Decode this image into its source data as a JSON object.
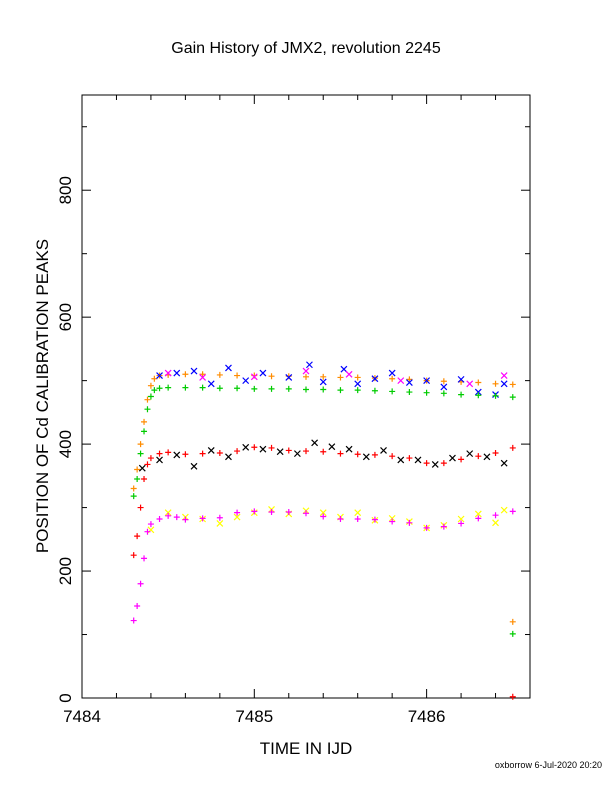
{
  "chart_data": {
    "type": "scatter",
    "title": "Gain History of JMX2, revolution 2245",
    "xlabel": "TIME IN IJD",
    "ylabel": "POSITION OF Cd CALIBRATION PEAKS",
    "xlim": [
      7484.0,
      7486.6
    ],
    "ylim": [
      0,
      950
    ],
    "xticks": [
      7484,
      7485,
      7486
    ],
    "yticks": [
      0,
      200,
      400,
      600,
      800
    ],
    "grid": false,
    "legend": "none",
    "series": [
      {
        "color": "#ff8c00",
        "marker": "+",
        "points": [
          [
            7484.3,
            330
          ],
          [
            7484.32,
            360
          ],
          [
            7484.34,
            400
          ],
          [
            7484.36,
            435
          ],
          [
            7484.38,
            470
          ],
          [
            7484.4,
            492
          ],
          [
            7484.42,
            503
          ],
          [
            7484.45,
            508
          ],
          [
            7484.5,
            509
          ],
          [
            7484.6,
            510
          ],
          [
            7484.7,
            510
          ],
          [
            7484.8,
            509
          ],
          [
            7484.9,
            508
          ],
          [
            7485.0,
            508
          ],
          [
            7485.1,
            507
          ],
          [
            7485.2,
            507
          ],
          [
            7485.3,
            506
          ],
          [
            7485.4,
            506
          ],
          [
            7485.5,
            505
          ],
          [
            7485.6,
            505
          ],
          [
            7485.7,
            504
          ],
          [
            7485.8,
            503
          ],
          [
            7485.9,
            502
          ],
          [
            7486.0,
            500
          ],
          [
            7486.1,
            499
          ],
          [
            7486.2,
            498
          ],
          [
            7486.3,
            497
          ],
          [
            7486.4,
            495
          ],
          [
            7486.5,
            494
          ],
          [
            7486.5,
            120
          ]
        ]
      },
      {
        "color": "#0000ff",
        "marker": "x",
        "points": [
          [
            7484.45,
            508
          ],
          [
            7484.55,
            512
          ],
          [
            7484.65,
            515
          ],
          [
            7484.75,
            495
          ],
          [
            7484.85,
            520
          ],
          [
            7484.95,
            500
          ],
          [
            7485.05,
            512
          ],
          [
            7485.2,
            505
          ],
          [
            7485.32,
            525
          ],
          [
            7485.4,
            498
          ],
          [
            7485.52,
            518
          ],
          [
            7485.6,
            495
          ],
          [
            7485.7,
            503
          ],
          [
            7485.8,
            512
          ],
          [
            7485.9,
            497
          ],
          [
            7486.0,
            500
          ],
          [
            7486.1,
            490
          ],
          [
            7486.2,
            502
          ],
          [
            7486.3,
            482
          ],
          [
            7486.4,
            478
          ],
          [
            7486.45,
            495
          ]
        ]
      },
      {
        "color": "#ff00ff",
        "marker": "x",
        "points": [
          [
            7484.5,
            512
          ],
          [
            7484.7,
            505
          ],
          [
            7485.0,
            506
          ],
          [
            7485.3,
            515
          ],
          [
            7485.55,
            510
          ],
          [
            7485.85,
            500
          ],
          [
            7486.25,
            495
          ],
          [
            7486.45,
            508
          ]
        ]
      },
      {
        "color": "#00cc00",
        "marker": "+",
        "points": [
          [
            7484.3,
            318
          ],
          [
            7484.32,
            345
          ],
          [
            7484.34,
            385
          ],
          [
            7484.36,
            420
          ],
          [
            7484.38,
            455
          ],
          [
            7484.4,
            475
          ],
          [
            7484.42,
            485
          ],
          [
            7484.45,
            488
          ],
          [
            7484.5,
            489
          ],
          [
            7484.6,
            489
          ],
          [
            7484.7,
            489
          ],
          [
            7484.8,
            488
          ],
          [
            7484.9,
            488
          ],
          [
            7485.0,
            487
          ],
          [
            7485.1,
            487
          ],
          [
            7485.2,
            487
          ],
          [
            7485.3,
            486
          ],
          [
            7485.4,
            486
          ],
          [
            7485.5,
            485
          ],
          [
            7485.6,
            485
          ],
          [
            7485.7,
            484
          ],
          [
            7485.8,
            483
          ],
          [
            7485.9,
            482
          ],
          [
            7486.0,
            481
          ],
          [
            7486.1,
            480
          ],
          [
            7486.2,
            478
          ],
          [
            7486.3,
            477
          ],
          [
            7486.4,
            476
          ],
          [
            7486.5,
            474
          ],
          [
            7486.5,
            101
          ]
        ]
      },
      {
        "color": "#000000",
        "marker": "x",
        "points": [
          [
            7484.35,
            362
          ],
          [
            7484.45,
            375
          ],
          [
            7484.55,
            383
          ],
          [
            7484.65,
            365
          ],
          [
            7484.75,
            390
          ],
          [
            7484.85,
            380
          ],
          [
            7484.95,
            395
          ],
          [
            7485.05,
            392
          ],
          [
            7485.15,
            388
          ],
          [
            7485.25,
            385
          ],
          [
            7485.35,
            402
          ],
          [
            7485.45,
            396
          ],
          [
            7485.55,
            392
          ],
          [
            7485.65,
            380
          ],
          [
            7485.75,
            390
          ],
          [
            7485.85,
            375
          ],
          [
            7485.95,
            375
          ],
          [
            7486.05,
            368
          ],
          [
            7486.15,
            378
          ],
          [
            7486.25,
            385
          ],
          [
            7486.35,
            380
          ],
          [
            7486.45,
            370
          ]
        ]
      },
      {
        "color": "#ff0000",
        "marker": "+",
        "points": [
          [
            7484.3,
            225
          ],
          [
            7484.32,
            255
          ],
          [
            7484.34,
            300
          ],
          [
            7484.36,
            345
          ],
          [
            7484.38,
            368
          ],
          [
            7484.4,
            378
          ],
          [
            7484.45,
            385
          ],
          [
            7484.5,
            387
          ],
          [
            7484.6,
            384
          ],
          [
            7484.7,
            385
          ],
          [
            7484.8,
            386
          ],
          [
            7484.9,
            389
          ],
          [
            7485.0,
            395
          ],
          [
            7485.1,
            394
          ],
          [
            7485.2,
            390
          ],
          [
            7485.3,
            389
          ],
          [
            7485.4,
            388
          ],
          [
            7485.5,
            385
          ],
          [
            7485.6,
            384
          ],
          [
            7485.7,
            383
          ],
          [
            7485.8,
            381
          ],
          [
            7485.9,
            378
          ],
          [
            7486.0,
            370
          ],
          [
            7486.1,
            370
          ],
          [
            7486.2,
            376
          ],
          [
            7486.3,
            381
          ],
          [
            7486.4,
            386
          ],
          [
            7486.5,
            394
          ],
          [
            7486.5,
            2
          ]
        ]
      },
      {
        "color": "#ffff00",
        "marker": "x",
        "points": [
          [
            7484.4,
            265
          ],
          [
            7484.5,
            292
          ],
          [
            7484.6,
            285
          ],
          [
            7484.7,
            282
          ],
          [
            7484.8,
            275
          ],
          [
            7484.9,
            285
          ],
          [
            7485.0,
            292
          ],
          [
            7485.1,
            297
          ],
          [
            7485.2,
            290
          ],
          [
            7485.3,
            295
          ],
          [
            7485.4,
            292
          ],
          [
            7485.5,
            285
          ],
          [
            7485.6,
            292
          ],
          [
            7485.7,
            280
          ],
          [
            7485.8,
            283
          ],
          [
            7485.9,
            278
          ],
          [
            7486.0,
            268
          ],
          [
            7486.1,
            272
          ],
          [
            7486.2,
            282
          ],
          [
            7486.3,
            290
          ],
          [
            7486.4,
            276
          ],
          [
            7486.45,
            296
          ]
        ]
      },
      {
        "color": "#ff00ff",
        "marker": "+",
        "points": [
          [
            7484.3,
            122
          ],
          [
            7484.32,
            145
          ],
          [
            7484.34,
            180
          ],
          [
            7484.36,
            220
          ],
          [
            7484.38,
            262
          ],
          [
            7484.4,
            274
          ],
          [
            7484.45,
            282
          ],
          [
            7484.5,
            287
          ],
          [
            7484.55,
            285
          ],
          [
            7484.6,
            281
          ],
          [
            7484.7,
            283
          ],
          [
            7484.8,
            284
          ],
          [
            7484.9,
            292
          ],
          [
            7485.0,
            294
          ],
          [
            7485.1,
            293
          ],
          [
            7485.2,
            293
          ],
          [
            7485.3,
            291
          ],
          [
            7485.4,
            286
          ],
          [
            7485.5,
            282
          ],
          [
            7485.6,
            282
          ],
          [
            7485.7,
            281
          ],
          [
            7485.8,
            278
          ],
          [
            7485.9,
            276
          ],
          [
            7486.0,
            268
          ],
          [
            7486.1,
            270
          ],
          [
            7486.2,
            275
          ],
          [
            7486.3,
            283
          ],
          [
            7486.4,
            288
          ],
          [
            7486.5,
            294
          ]
        ]
      }
    ]
  },
  "footer": {
    "credit": "oxborrow  6-Jul-2020 20:20"
  }
}
